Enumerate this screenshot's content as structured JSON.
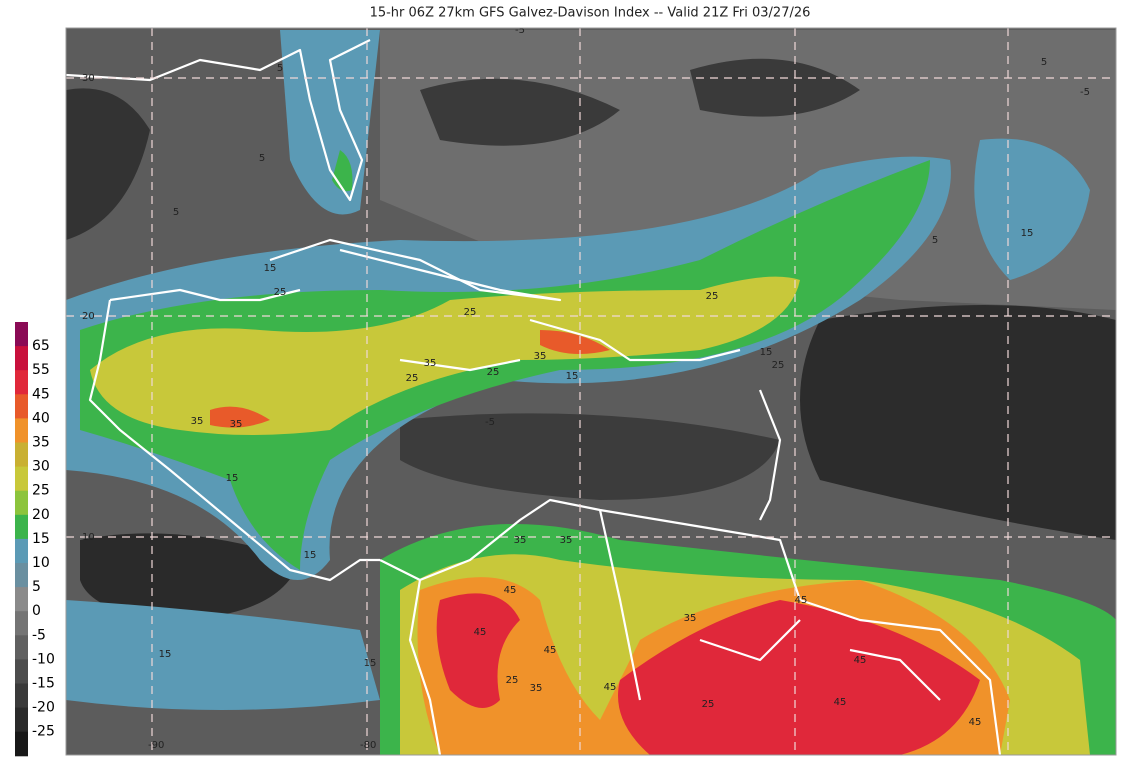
{
  "title": "15-hr 06Z 27km GFS Galvez-Davison Index -- Valid 21Z Fri 03/27/26",
  "colorbar": {
    "labels": [
      65,
      55,
      45,
      40,
      35,
      30,
      25,
      20,
      15,
      10,
      5,
      0,
      -5,
      -10,
      -15,
      -20,
      -25
    ],
    "colors": [
      "#8a0a55",
      "#c8103c",
      "#e0283a",
      "#e85a2a",
      "#f0922a",
      "#c9b032",
      "#c8c83a",
      "#8cc43c",
      "#3cb44b",
      "#5b9ab5",
      "#6a8fa0",
      "#8a8a8a",
      "#747474",
      "#606060",
      "#4c4c4c",
      "#3a3a3a",
      "#2a2a2a",
      "#181818"
    ]
  },
  "lat_labels": [
    "30",
    "20",
    "10"
  ],
  "lon_labels": [
    "-90",
    "-80"
  ],
  "contour_labels": [
    "-5",
    "5",
    "-5",
    "5",
    "5",
    "15",
    "25",
    "25",
    "35",
    "25",
    "35",
    "35",
    "25",
    "25",
    "35",
    "25",
    "15",
    "15",
    "15",
    "5",
    "15",
    "35",
    "45",
    "35",
    "45",
    "25",
    "35",
    "45",
    "45",
    "35",
    "45",
    "45",
    "15",
    "15",
    "5",
    "-5",
    "15",
    "25",
    "45",
    "45"
  ]
}
